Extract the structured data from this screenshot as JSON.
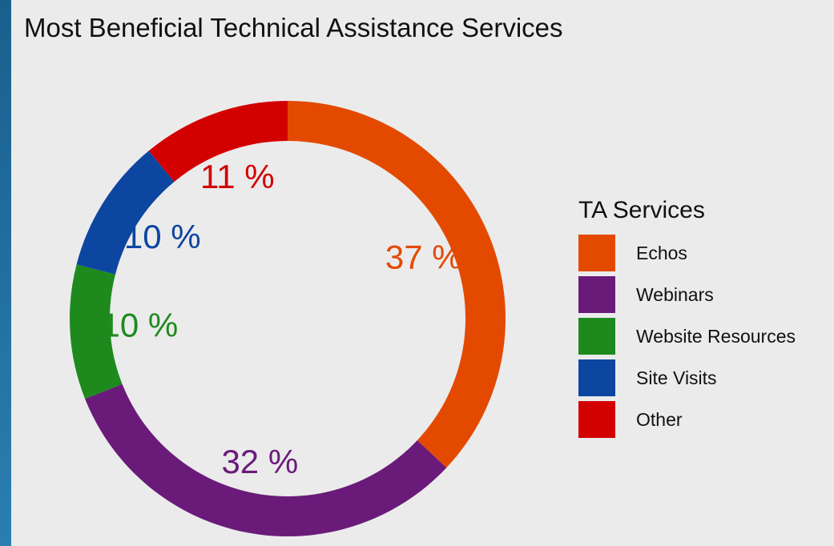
{
  "chart_data": {
    "type": "pie",
    "donut": true,
    "title": "Most Beneficial Technical Assistance Services",
    "legend_title": "TA Services",
    "legend_position": "right",
    "slices": [
      {
        "label": "Echos",
        "value": 37,
        "value_label": "37 %",
        "color": "#e34a00"
      },
      {
        "label": "Webinars",
        "value": 32,
        "value_label": "32 %",
        "color": "#6a1b7a"
      },
      {
        "label": "Website Resources",
        "value": 10,
        "value_label": "10 %",
        "color": "#1e8a1e"
      },
      {
        "label": "Site Visits",
        "value": 10,
        "value_label": "10 %",
        "color": "#0c46a0"
      },
      {
        "label": "Other",
        "value": 11,
        "value_label": "11 %",
        "color": "#d30000"
      }
    ]
  }
}
